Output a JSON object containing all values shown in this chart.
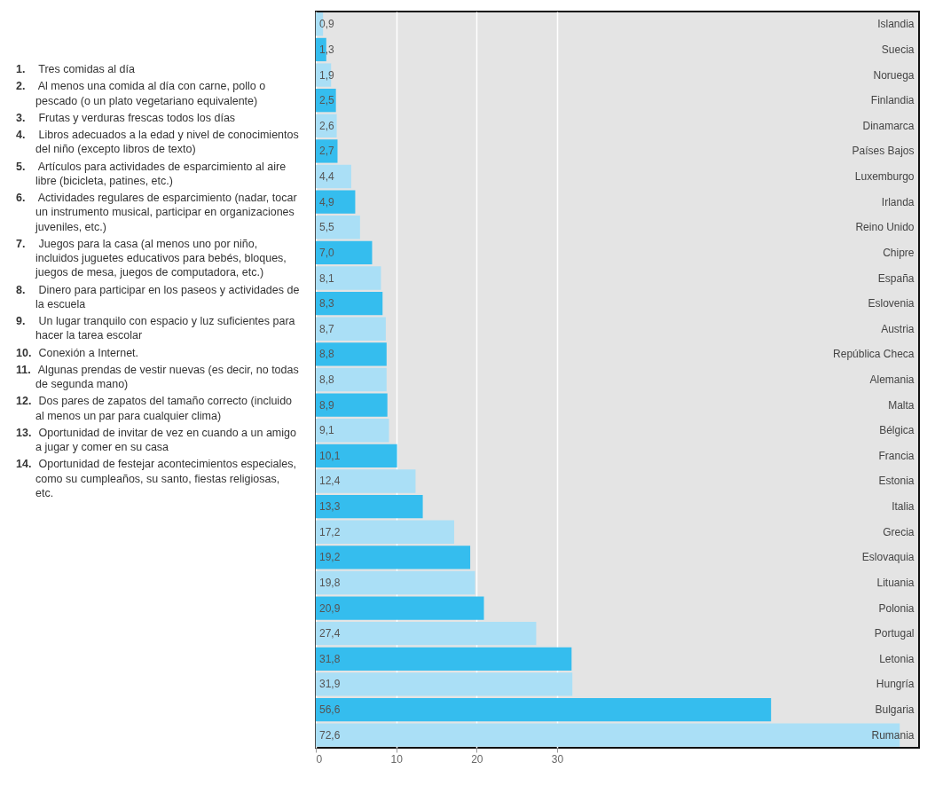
{
  "chart_data": {
    "type": "bar",
    "orientation": "horizontal",
    "categories": [
      "Islandia",
      "Suecia",
      "Noruega",
      "Finlandia",
      "Dinamarca",
      "Países Bajos",
      "Luxemburgo",
      "Irlanda",
      "Reino Unido",
      "Chipre",
      "España",
      "Eslovenia",
      "Austria",
      "República Checa",
      "Alemania",
      "Malta",
      "Bélgica",
      "Francia",
      "Estonia",
      "Italia",
      "Grecia",
      "Eslovaquia",
      "Lituania",
      "Polonia",
      "Portugal",
      "Letonia",
      "Hungría",
      "Bulgaria",
      "Rumania"
    ],
    "values": [
      0.9,
      1.3,
      1.9,
      2.5,
      2.6,
      2.7,
      4.4,
      4.9,
      5.5,
      7.0,
      8.1,
      8.3,
      8.7,
      8.8,
      8.8,
      8.9,
      9.1,
      10.1,
      12.4,
      13.3,
      17.2,
      19.2,
      19.8,
      20.9,
      27.4,
      31.8,
      31.9,
      56.6,
      72.6
    ],
    "value_labels": [
      "0,9",
      "1,3",
      "1,9",
      "2,5",
      "2,6",
      "2,7",
      "4,4",
      "4,9",
      "5,5",
      "7,0",
      "8,1",
      "8,3",
      "8,7",
      "8,8",
      "8,8",
      "8,9",
      "9,1",
      "10,1",
      "12,4",
      "13,3",
      "17,2",
      "19,2",
      "19,8",
      "20,9",
      "27,4",
      "31,8",
      "31,9",
      "56,6",
      "72,6"
    ],
    "colors": [
      "#aadff6",
      "#35bdee",
      "#aadff6",
      "#35bdee",
      "#aadff6",
      "#35bdee",
      "#aadff6",
      "#35bdee",
      "#aadff6",
      "#35bdee",
      "#aadff6",
      "#35bdee",
      "#aadff6",
      "#35bdee",
      "#aadff6",
      "#35bdee",
      "#aadff6",
      "#35bdee",
      "#aadff6",
      "#35bdee",
      "#aadff6",
      "#35bdee",
      "#aadff6",
      "#35bdee",
      "#aadff6",
      "#35bdee",
      "#aadff6",
      "#35bdee",
      "#aadff6"
    ],
    "xlim": [
      0,
      75
    ],
    "xticks": [
      0,
      10,
      20,
      30
    ],
    "grid": "x",
    "annotations": [
      "1. Tres comidas al día",
      "2. Al menos una comida al día con carne, pollo o pescado (o un plato vegetariano equivalente)",
      "3. Frutas y verduras frescas todos los días",
      "4. Libros adecuados a la edad y nivel de conocimientos del niño (excepto libros de texto)",
      "5. Artículos para actividades de esparcimiento al aire libre (bicicleta, patines, etc.)",
      "6. Actividades regulares de esparcimiento (nadar, tocar un instrumento musical, participar en organizaciones juveniles, etc.)",
      "7. Juegos para la casa (al menos uno por niño, incluidos juguetes educativos para bebés, bloques, juegos de mesa, juegos de computadora, etc.)",
      "8. Dinero para participar en los paseos y actividades de la escuela",
      "9. Un lugar tranquilo con espacio y luz suficientes para hacer la tarea escolar",
      "10. Conexión a Internet.",
      "11. Algunas prendas de vestir nuevas (es decir, no todas de segunda mano)",
      "12. Dos pares de zapatos del tamaño correcto (incluido al menos un par para cualquier clima)",
      "13. Oportunidad de invitar de vez en cuando a un amigo a jugar y comer en su casa",
      "14. Oportunidad de festejar acontecimientos especiales, como su cumpleaños, su santo, fiestas religiosas, etc."
    ]
  }
}
